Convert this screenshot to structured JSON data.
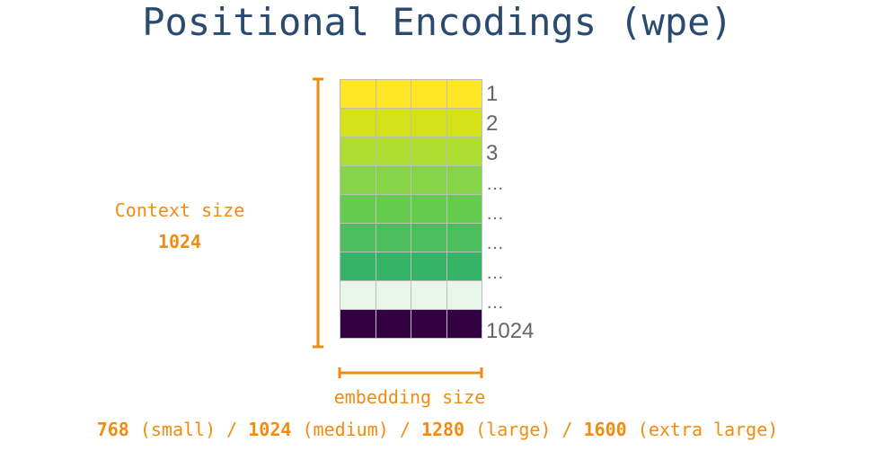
{
  "title": "Positional Encodings (wpe)",
  "context": {
    "label": "Context size",
    "value": "1024"
  },
  "grid": {
    "columns": 4,
    "rows": [
      {
        "label": "1",
        "color": "#fde725"
      },
      {
        "label": "2",
        "color": "#d5e21a"
      },
      {
        "label": "3",
        "color": "#addc30"
      },
      {
        "label": "…",
        "color": "#86d549"
      },
      {
        "label": "…",
        "color": "#65cb4d"
      },
      {
        "label": "…",
        "color": "#4cbe5b"
      },
      {
        "label": "…",
        "color": "#35b367"
      },
      {
        "label": "…",
        "color": "#e8f5ea"
      },
      {
        "label": "1024",
        "color": "#330044"
      }
    ]
  },
  "embedding": {
    "label": "embedding size"
  },
  "sizes": [
    {
      "value": "768",
      "name": "(small)"
    },
    {
      "value": "1024",
      "name": "(medium)"
    },
    {
      "value": "1280",
      "name": "(large)"
    },
    {
      "value": "1600",
      "name": "(extra large)"
    }
  ],
  "separator": " / ",
  "colors": {
    "title": "#2b4a6f",
    "accent": "#f28c0f",
    "row_label": "#666666"
  }
}
